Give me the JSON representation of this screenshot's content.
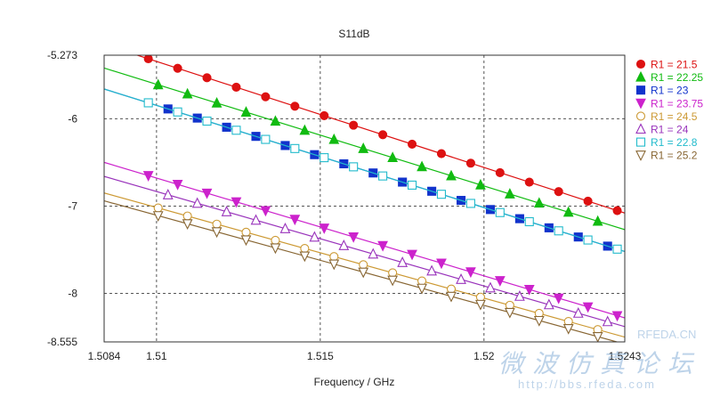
{
  "chart_data": {
    "type": "line",
    "title": "S11dB",
    "xlabel": "Frequency / GHz",
    "ylabel": "",
    "xlim": [
      1.5084,
      1.5243
    ],
    "ylim": [
      -8.555,
      -5.273
    ],
    "x_ticks": [
      "1.5084",
      "1.51",
      "1.515",
      "1.52",
      "1.5243"
    ],
    "y_ticks": [
      "-5.273",
      "-6",
      "-7",
      "-8",
      "-8.555"
    ],
    "grid": "dashed",
    "legend_position": "right",
    "series": [
      {
        "name": "R1 = 21.5",
        "color": "#dd1111",
        "marker": "circle-filled",
        "x": [
          1.5084,
          1.5243
        ],
        "y": [
          -5.15,
          -7.08
        ]
      },
      {
        "name": "R1 = 22.25",
        "color": "#11bb11",
        "marker": "triangle-up-filled",
        "x": [
          1.5084,
          1.5243
        ],
        "y": [
          -5.42,
          -7.27
        ]
      },
      {
        "name": "R1 = 23",
        "color": "#1133cc",
        "marker": "square-filled",
        "x": [
          1.5084,
          1.5243
        ],
        "y": [
          -5.66,
          -7.52
        ]
      },
      {
        "name": "R1 = 23.75",
        "color": "#cc22cc",
        "marker": "triangle-down-filled",
        "x": [
          1.5084,
          1.5243
        ],
        "y": [
          -6.5,
          -8.28
        ]
      },
      {
        "name": "R1 = 24.5",
        "color": "#cc9933",
        "marker": "circle-open",
        "x": [
          1.5084,
          1.5243
        ],
        "y": [
          -6.85,
          -8.5
        ]
      },
      {
        "name": "R1 = 24",
        "color": "#9933bb",
        "marker": "triangle-up-open",
        "x": [
          1.5084,
          1.5243
        ],
        "y": [
          -6.66,
          -8.38
        ]
      },
      {
        "name": "R1 = 22.8",
        "color": "#22bbcc",
        "marker": "square-open",
        "x": [
          1.5084,
          1.5243
        ],
        "y": [
          -5.66,
          -7.52
        ]
      },
      {
        "name": "R1 = 25.2",
        "color": "#886633",
        "marker": "triangle-down-open",
        "x": [
          1.5084,
          1.5243
        ],
        "y": [
          -6.94,
          -8.58
        ]
      }
    ]
  },
  "watermark": {
    "logo": "RFEDA.CN",
    "cn_text": "微波仿真论坛",
    "url": "http://bbs.rfeda.com"
  }
}
